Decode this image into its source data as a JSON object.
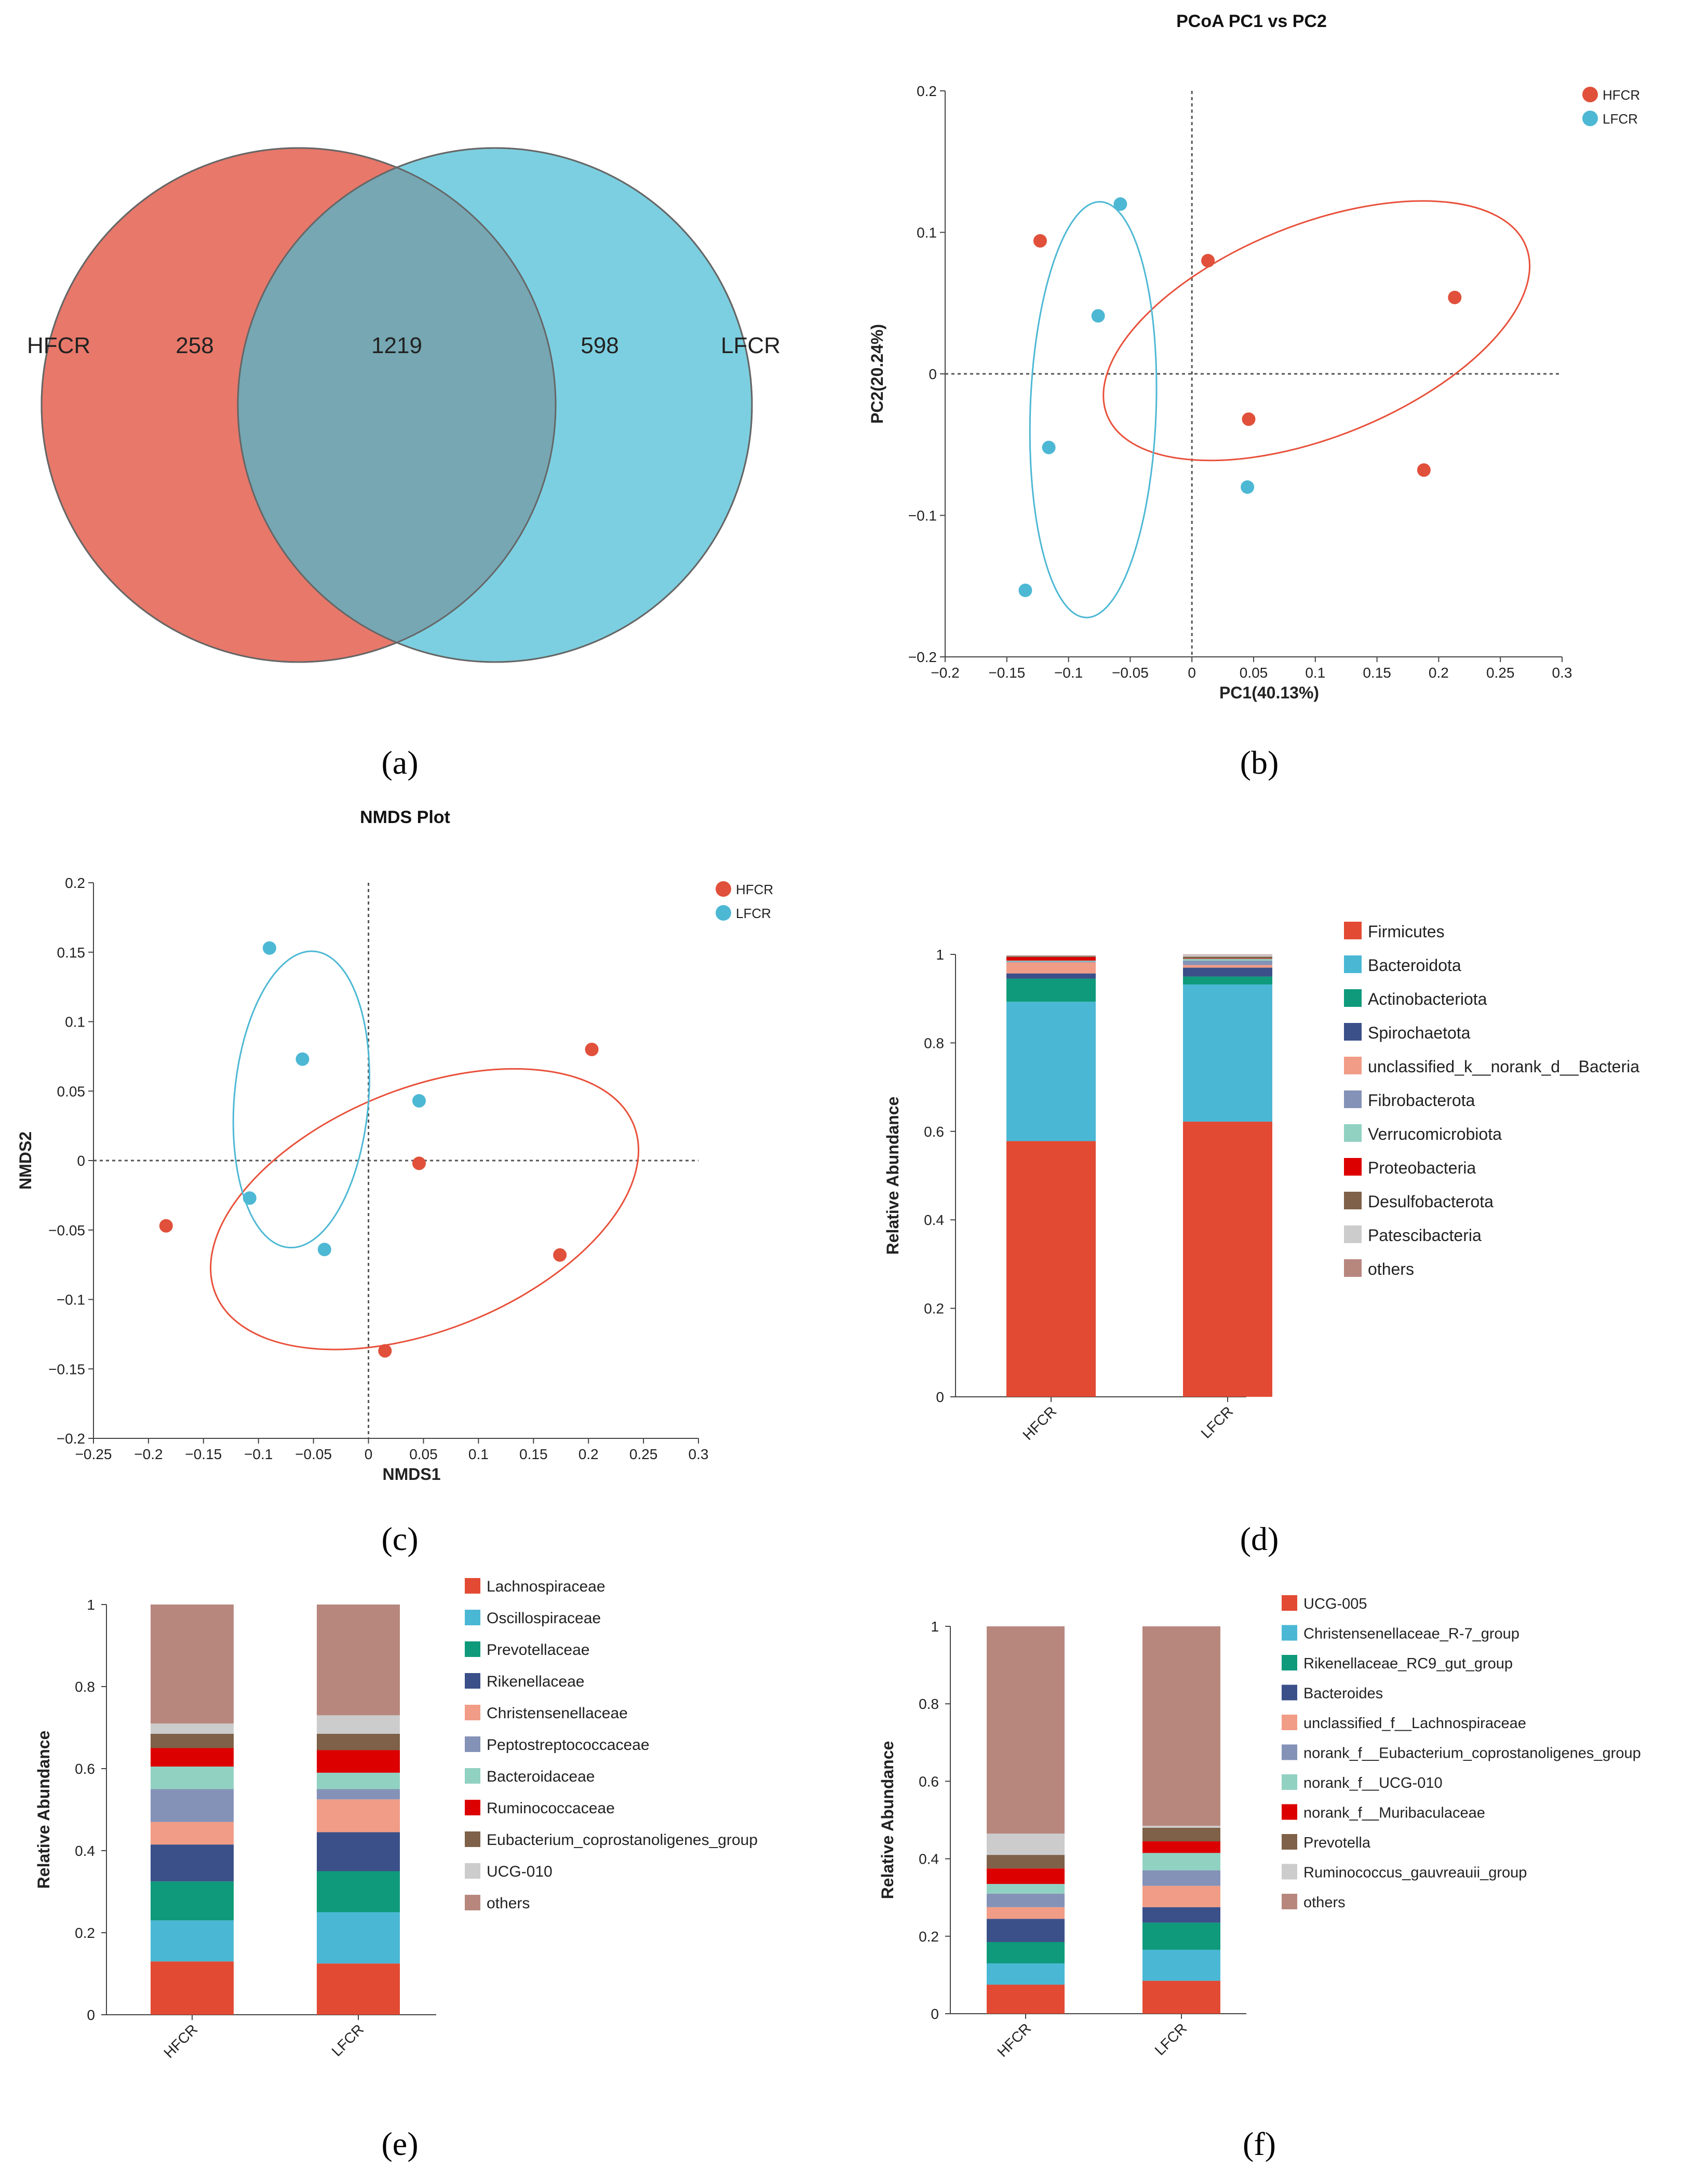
{
  "colors": {
    "hfcr": "#e0503a",
    "lfcr": "#4db8d4",
    "venn_left": "#e8786a",
    "venn_right": "#7ccfe0",
    "venn_overlap": "#76a7b3",
    "ellipse_hfcr": "#e8503a",
    "ellipse_lfcr": "#4db8d4"
  },
  "panel_labels": [
    "(a)",
    "(b)",
    "(c)",
    "(d)",
    "(e)",
    "(f)"
  ],
  "chart_data": [
    {
      "id": "a",
      "type": "venn",
      "sets": [
        {
          "name": "HFCR",
          "unique": 258
        },
        {
          "name": "LFCR",
          "unique": 598
        }
      ],
      "intersection": 1219
    },
    {
      "id": "b",
      "type": "scatter",
      "title": "PCoA PC1 vs PC2",
      "xlabel": "PC1(40.13%)",
      "ylabel": "PC2(20.24%)",
      "xlim": [
        -0.2,
        0.3
      ],
      "ylim": [
        -0.2,
        0.2
      ],
      "xticks": [
        "−0.2",
        "−0.15",
        "−0.1",
        "−0.05",
        "0",
        "0.05",
        "0.1",
        "0.15",
        "0.2",
        "0.25",
        "0.3"
      ],
      "yticks": [
        "0.2",
        "0.1",
        "0",
        "−0.1",
        "−0.2"
      ],
      "legend": [
        "HFCR",
        "LFCR"
      ],
      "series": [
        {
          "name": "HFCR",
          "points": [
            [
              -0.123,
              0.094
            ],
            [
              0.013,
              0.08
            ],
            [
              0.213,
              0.054
            ],
            [
              0.046,
              -0.032
            ],
            [
              0.188,
              -0.068
            ]
          ],
          "ellipse": {
            "cx": 0.101,
            "cy": 0.0305,
            "rx": 0.183,
            "ry": 0.075,
            "angle": -22
          }
        },
        {
          "name": "LFCR",
          "points": [
            [
              -0.058,
              0.12
            ],
            [
              -0.076,
              0.041
            ],
            [
              -0.116,
              -0.052
            ],
            [
              0.045,
              -0.08
            ],
            [
              -0.135,
              -0.153
            ]
          ],
          "ellipse": {
            "cx": -0.08,
            "cy": -0.0253,
            "rx": 0.051,
            "ry": 0.147,
            "angle": 2
          }
        }
      ]
    },
    {
      "id": "c",
      "type": "scatter",
      "title": "NMDS Plot",
      "xlabel": "NMDS1",
      "ylabel": "NMDS2",
      "xlim": [
        -0.25,
        0.3
      ],
      "ylim": [
        -0.2,
        0.2
      ],
      "xticks": [
        "−0.25",
        "−0.2",
        "−0.15",
        "−0.1",
        "−0.05",
        "0",
        "0.05",
        "0.1",
        "0.15",
        "0.2",
        "0.25",
        "0.3"
      ],
      "yticks": [
        "0.2",
        "0.15",
        "0.1",
        "0.05",
        "0",
        "−0.05",
        "−0.1",
        "−0.15",
        "−0.2"
      ],
      "legend": [
        "HFCR",
        "LFCR"
      ],
      "series": [
        {
          "name": "HFCR",
          "points": [
            [
              0.203,
              0.08
            ],
            [
              0.046,
              -0.002
            ],
            [
              -0.184,
              -0.047
            ],
            [
              0.174,
              -0.068
            ],
            [
              0.015,
              -0.137
            ]
          ],
          "ellipse": {
            "cx": 0.051,
            "cy": -0.035,
            "rx": 0.205,
            "ry": 0.087,
            "angle": -22
          }
        },
        {
          "name": "LFCR",
          "points": [
            [
              -0.09,
              0.153
            ],
            [
              -0.06,
              0.073
            ],
            [
              0.046,
              0.043
            ],
            [
              -0.108,
              -0.027
            ],
            [
              -0.04,
              -0.064
            ]
          ],
          "ellipse": {
            "cx": -0.061,
            "cy": 0.044,
            "rx": 0.061,
            "ry": 0.107,
            "angle": 5
          }
        }
      ]
    },
    {
      "id": "d",
      "type": "bar",
      "stacked": true,
      "ylabel": "Relative Abundance",
      "ylim": [
        0,
        1
      ],
      "yticks": [
        "1",
        "0.8",
        "0.6",
        "0.4",
        "0.2",
        "0"
      ],
      "categories": [
        "HFCR",
        "LFCR"
      ],
      "series": [
        {
          "name": "Firmicutes",
          "color": "#e24a33",
          "values": [
            0.578,
            0.622
          ]
        },
        {
          "name": "Bacteroidota",
          "color": "#4ab8d4",
          "values": [
            0.315,
            0.31
          ]
        },
        {
          "name": "Actinobacteriota",
          "color": "#0e9a7b",
          "values": [
            0.052,
            0.018
          ]
        },
        {
          "name": "Spirochaetota",
          "color": "#3b5089",
          "values": [
            0.012,
            0.02
          ]
        },
        {
          "name": "unclassified_k__norank_d__Bacteria",
          "color": "#f19c86",
          "values": [
            0.025,
            0.006
          ]
        },
        {
          "name": "Fibrobacterota",
          "color": "#8592b7",
          "values": [
            0.002,
            0.01
          ]
        },
        {
          "name": "Verrucomicrobiota",
          "color": "#91d1c2",
          "values": [
            0.002,
            0.004
          ]
        },
        {
          "name": "Proteobacteria",
          "color": "#dc0000",
          "values": [
            0.008,
            0.001
          ]
        },
        {
          "name": "Desulfobacterota",
          "color": "#7e6148",
          "values": [
            0.002,
            0.004
          ]
        },
        {
          "name": "Patescibacteria",
          "color": "#cccccc",
          "values": [
            0.001,
            0.004
          ]
        },
        {
          "name": "others",
          "color": "#b7877e",
          "values": [
            0.001,
            0.001
          ]
        }
      ]
    },
    {
      "id": "e",
      "type": "bar",
      "stacked": true,
      "ylabel": "Relative Abundance",
      "ylim": [
        0,
        1
      ],
      "yticks": [
        "1",
        "0.8",
        "0.6",
        "0.4",
        "0.2",
        "0"
      ],
      "categories": [
        "HFCR",
        "LFCR"
      ],
      "series": [
        {
          "name": "Lachnospiraceae",
          "color": "#e24a33",
          "values": [
            0.13,
            0.125
          ]
        },
        {
          "name": "Oscillospiraceae",
          "color": "#4ab8d4",
          "values": [
            0.1,
            0.125
          ]
        },
        {
          "name": "Prevotellaceae",
          "color": "#0e9a7b",
          "values": [
            0.095,
            0.1
          ]
        },
        {
          "name": "Rikenellaceae",
          "color": "#3b5089",
          "values": [
            0.09,
            0.095
          ]
        },
        {
          "name": "Christensenellaceae",
          "color": "#f19c86",
          "values": [
            0.055,
            0.08
          ]
        },
        {
          "name": "Peptostreptococcaceae",
          "color": "#8592b7",
          "values": [
            0.08,
            0.025
          ]
        },
        {
          "name": "Bacteroidaceae",
          "color": "#91d1c2",
          "values": [
            0.055,
            0.04
          ]
        },
        {
          "name": "Ruminococcaceae",
          "color": "#dc0000",
          "values": [
            0.045,
            0.055
          ]
        },
        {
          "name": "Eubacterium_coprostanoligenes_group",
          "color": "#7e6148",
          "values": [
            0.035,
            0.04
          ]
        },
        {
          "name": "UCG-010",
          "color": "#cccccc",
          "values": [
            0.025,
            0.045
          ]
        },
        {
          "name": "others",
          "color": "#b7877e",
          "values": [
            0.29,
            0.27
          ]
        }
      ]
    },
    {
      "id": "f",
      "type": "bar",
      "stacked": true,
      "ylabel": "Relative Abundance",
      "ylim": [
        0,
        1
      ],
      "yticks": [
        "1",
        "0.8",
        "0.6",
        "0.4",
        "0.2",
        "0"
      ],
      "categories": [
        "HFCR",
        "LFCR"
      ],
      "series": [
        {
          "name": "UCG-005",
          "color": "#e24a33",
          "values": [
            0.075,
            0.085
          ]
        },
        {
          "name": "Christensenellaceae_R-7_group",
          "color": "#4ab8d4",
          "values": [
            0.055,
            0.08
          ]
        },
        {
          "name": "Rikenellaceae_RC9_gut_group",
          "color": "#0e9a7b",
          "values": [
            0.055,
            0.07
          ]
        },
        {
          "name": "Bacteroides",
          "color": "#3b5089",
          "values": [
            0.06,
            0.04
          ]
        },
        {
          "name": "unclassified_f__Lachnospiraceae",
          "color": "#f19c86",
          "values": [
            0.03,
            0.055
          ]
        },
        {
          "name": "norank_f__Eubacterium_coprostanoligenes_group",
          "color": "#8592b7",
          "values": [
            0.035,
            0.04
          ]
        },
        {
          "name": "norank_f__UCG-010",
          "color": "#91d1c2",
          "values": [
            0.025,
            0.045
          ]
        },
        {
          "name": "norank_f__Muribaculaceae",
          "color": "#dc0000",
          "values": [
            0.04,
            0.03
          ]
        },
        {
          "name": "Prevotella",
          "color": "#7e6148",
          "values": [
            0.035,
            0.035
          ]
        },
        {
          "name": "Ruminococcus_gauvreauii_group",
          "color": "#cccccc",
          "values": [
            0.055,
            0.005
          ]
        },
        {
          "name": "others",
          "color": "#b7877e",
          "values": [
            0.535,
            0.515
          ]
        }
      ]
    }
  ]
}
